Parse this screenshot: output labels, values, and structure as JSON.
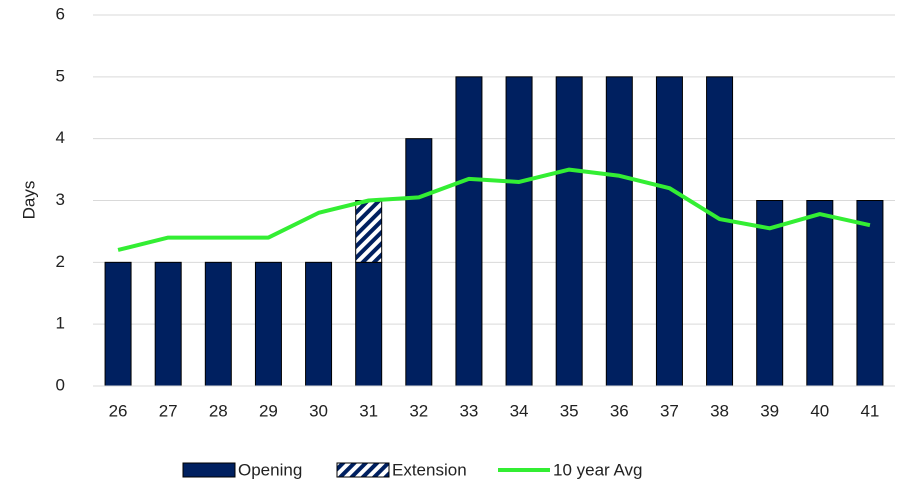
{
  "chart_data": {
    "type": "bar",
    "y_label": "Days",
    "categories": [
      "26",
      "27",
      "28",
      "29",
      "30",
      "31",
      "32",
      "33",
      "34",
      "35",
      "36",
      "37",
      "38",
      "39",
      "40",
      "41"
    ],
    "series": [
      {
        "name": "Opening",
        "type": "bar",
        "color": "#002060",
        "values": [
          2,
          2,
          2,
          2,
          2,
          2,
          4,
          5,
          5,
          5,
          5,
          5,
          5,
          3,
          3,
          3
        ]
      },
      {
        "name": "Extension",
        "type": "bar",
        "color": "#002060",
        "pattern": "hatch",
        "values": [
          0,
          0,
          0,
          0,
          0,
          1,
          0,
          0,
          0,
          0,
          0,
          0,
          0,
          0,
          0,
          0
        ]
      },
      {
        "name": "10 year Avg",
        "type": "line",
        "color": "#33ee33",
        "values": [
          2.2,
          2.4,
          2.4,
          2.4,
          2.8,
          3.0,
          3.05,
          3.35,
          3.3,
          3.5,
          3.4,
          3.2,
          2.7,
          2.55,
          2.78,
          2.6
        ]
      }
    ],
    "stacked": true,
    "ylim": [
      0,
      6
    ],
    "yticks": [
      0,
      1,
      2,
      3,
      4,
      5,
      6
    ],
    "grid": true,
    "legend": "bottom"
  }
}
